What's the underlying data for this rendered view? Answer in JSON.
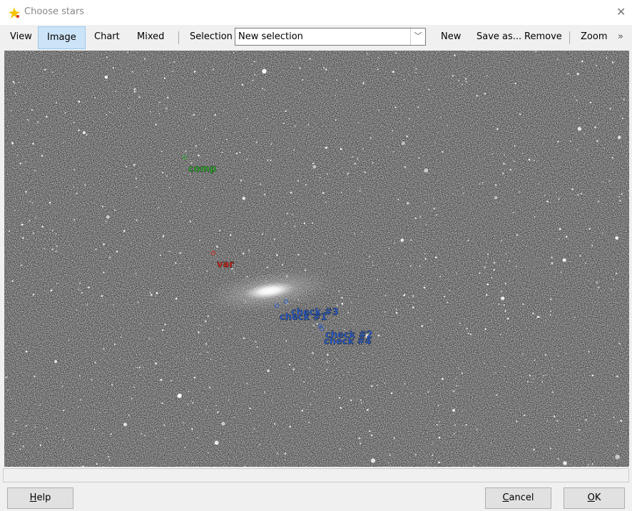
{
  "window": {
    "title": "Choose stars"
  },
  "toolbar": {
    "views": [
      "View",
      "Image",
      "Chart",
      "Mixed"
    ],
    "selection_label": "Selection",
    "combo": "New selection",
    "actions": [
      "New",
      "Save as...",
      "Remove"
    ],
    "zoom": "Zoom"
  },
  "image": {
    "labels": [
      {
        "text": "comp",
        "color": "#2fae2f"
      },
      {
        "text": "var",
        "color": "#d42a1e"
      },
      {
        "text": "check #1",
        "color": "#2a5fd0"
      },
      {
        "text": "check #3",
        "color": "#2a5fd0"
      },
      {
        "text": "check #4",
        "color": "#2a5fd0"
      },
      {
        "text": "check #2",
        "color": "#2a5fd0"
      }
    ]
  },
  "buttons": [
    "Help",
    "Cancel",
    "OK"
  ]
}
